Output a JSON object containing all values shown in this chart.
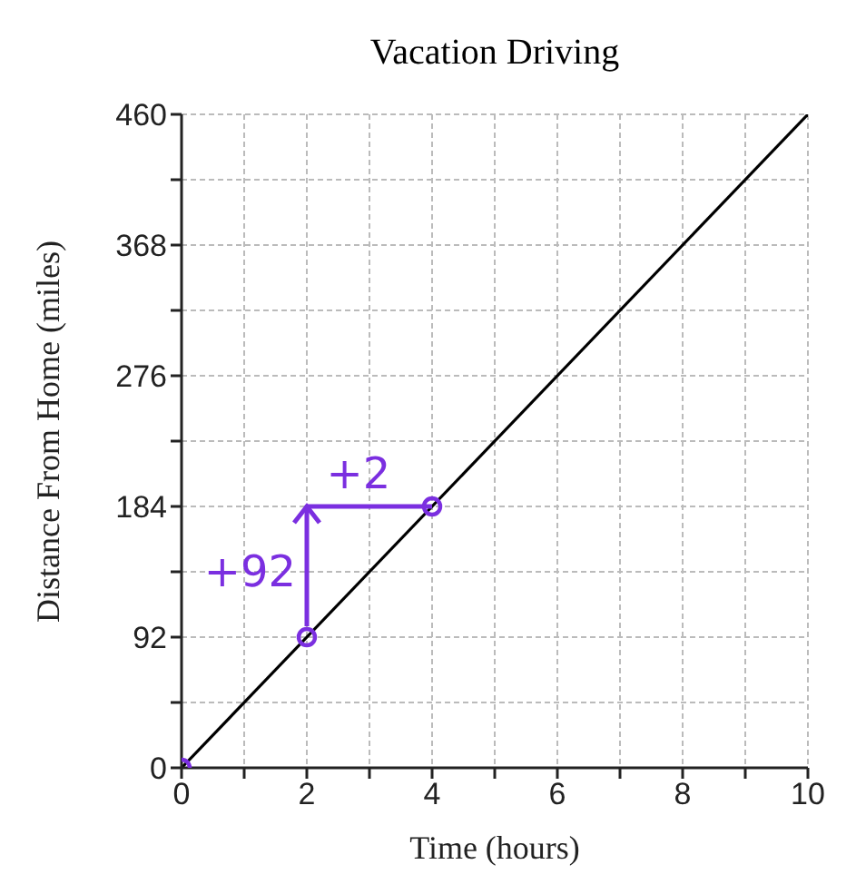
{
  "chart_data": {
    "type": "line",
    "title": "Vacation Driving",
    "xlabel": "Time (hours)",
    "ylabel": "Distance From Home (miles)",
    "x": [
      0,
      10
    ],
    "series": [
      {
        "color": "#000000",
        "values": [
          0,
          460
        ],
        "marker": "none"
      },
      {
        "type": "scatter",
        "color": "#7b2fe0",
        "x": [
          0,
          2,
          4
        ],
        "values": [
          0,
          92,
          184
        ],
        "marker": "circle"
      }
    ],
    "xlim": [
      0,
      10
    ],
    "ylim": [
      0,
      460
    ],
    "xticks": [
      0,
      {
        "value": 1,
        "label": null
      },
      2,
      {
        "value": 3,
        "label": null
      },
      4,
      {
        "value": 5,
        "label": null
      },
      6,
      {
        "value": 7,
        "label": null
      },
      8,
      {
        "value": 9,
        "label": null
      },
      10
    ],
    "yticks": [
      0,
      {
        "value": 46,
        "label": null
      },
      92,
      {
        "value": 138,
        "label": null
      },
      184,
      {
        "value": 230,
        "label": null
      },
      276,
      {
        "value": 322,
        "label": null
      },
      368,
      {
        "value": 414,
        "label": null
      },
      460
    ],
    "grid": true,
    "annotations": [
      {
        "text": "+92",
        "x": 2,
        "y": 92
      },
      {
        "text": "+2",
        "x": 4,
        "y": 184
      }
    ]
  }
}
